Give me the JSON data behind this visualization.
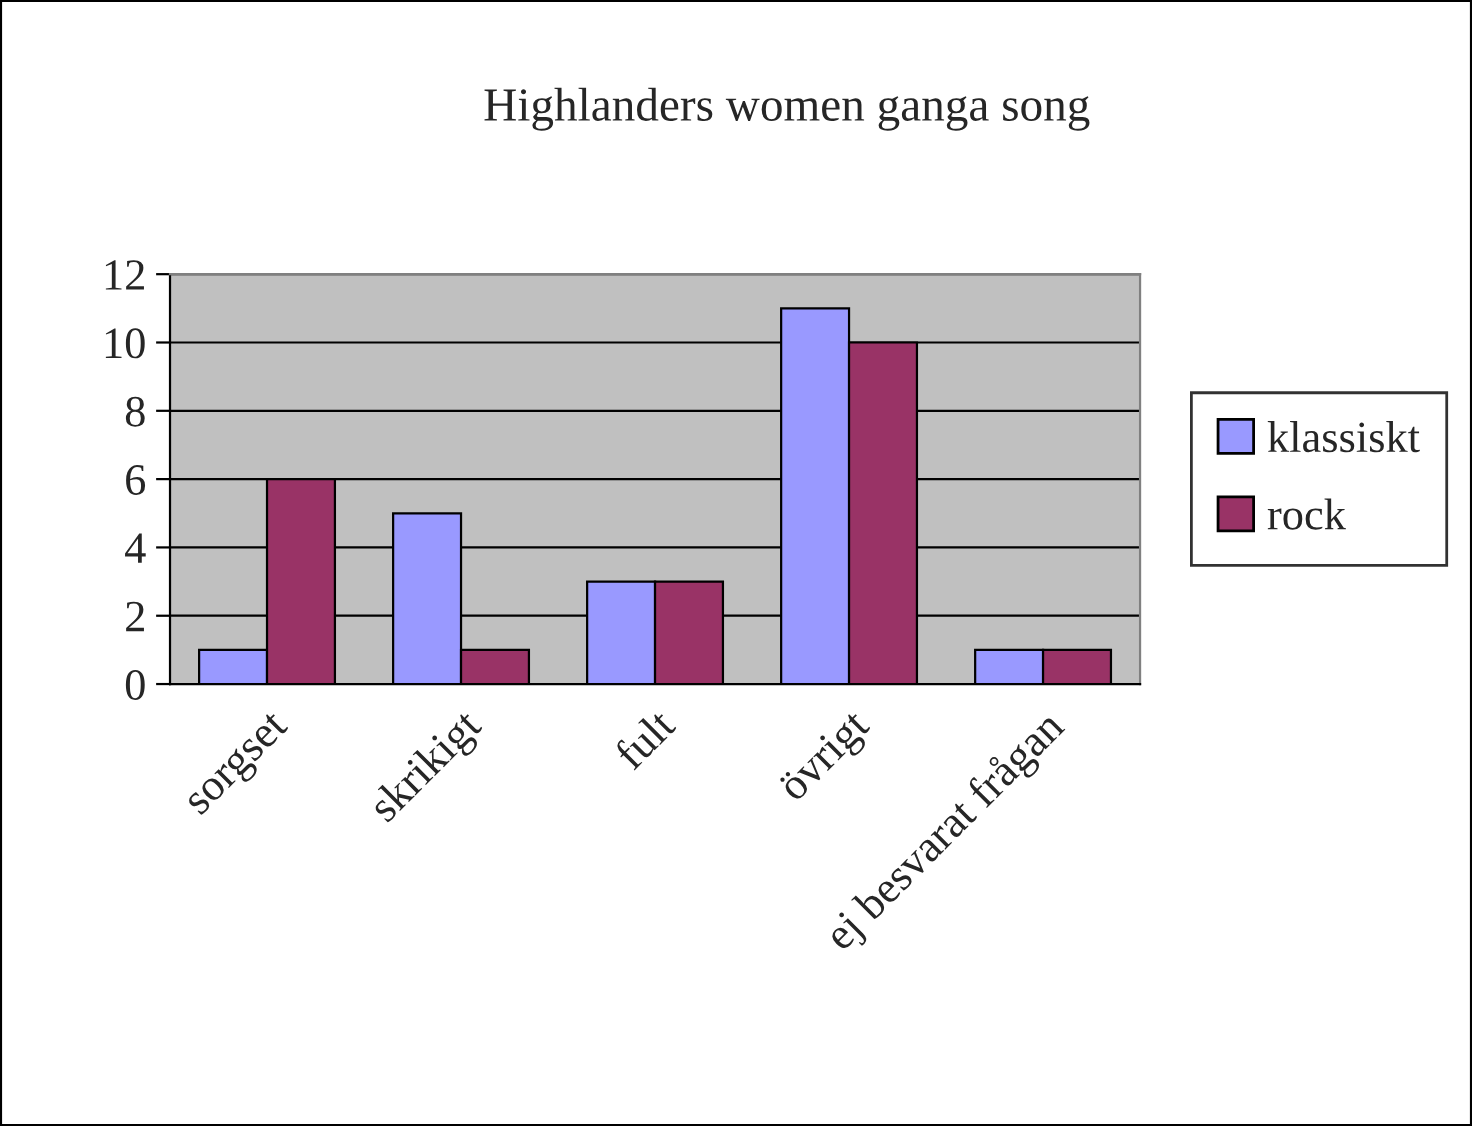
{
  "chart_data": {
    "type": "bar",
    "title": "Highlanders women ganga song",
    "categories": [
      "sorgset",
      "skrikigt",
      "fult",
      "övrigt",
      "ej besvarat frågan"
    ],
    "series": [
      {
        "name": "klassiskt",
        "color": "#9999ff",
        "values": [
          1,
          5,
          3,
          11,
          1
        ]
      },
      {
        "name": "rock",
        "color": "#993366",
        "values": [
          6,
          1,
          3,
          10,
          1
        ]
      }
    ],
    "ylim": [
      0,
      12
    ],
    "yticks": [
      0,
      2,
      4,
      6,
      8,
      10,
      12
    ],
    "grid": "y",
    "legend": "right"
  }
}
